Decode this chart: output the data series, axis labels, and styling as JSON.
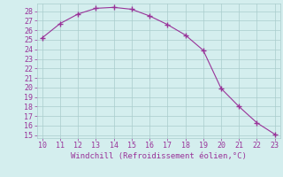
{
  "x": [
    10,
    11,
    12,
    13,
    14,
    15,
    16,
    17,
    18,
    19,
    20,
    21,
    22,
    23
  ],
  "y": [
    25.2,
    26.7,
    27.7,
    28.3,
    28.4,
    28.2,
    27.5,
    26.6,
    25.5,
    23.9,
    19.9,
    18.0,
    16.3,
    15.1
  ],
  "xlim": [
    9.7,
    23.3
  ],
  "ylim": [
    14.7,
    28.8
  ],
  "xticks": [
    10,
    11,
    12,
    13,
    14,
    15,
    16,
    17,
    18,
    19,
    20,
    21,
    22,
    23
  ],
  "yticks": [
    15,
    16,
    17,
    18,
    19,
    20,
    21,
    22,
    23,
    24,
    25,
    26,
    27,
    28
  ],
  "xlabel": "Windchill (Refroidissement éolien,°C)",
  "line_color": "#993399",
  "marker_color": "#993399",
  "bg_color": "#d4eeee",
  "grid_color": "#aacccc",
  "tick_label_color": "#993399",
  "xlabel_color": "#993399",
  "xlabel_fontsize": 6.5,
  "tick_fontsize": 6.0
}
